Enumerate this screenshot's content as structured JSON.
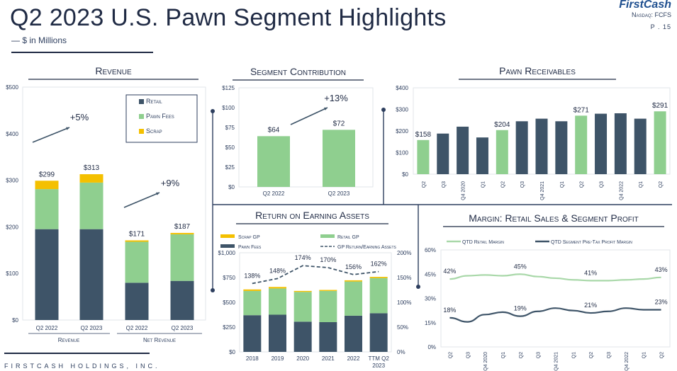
{
  "header": {
    "title": "Q2 2023 U.S. Pawn Segment Highlights",
    "subtitle": "— $ in Millions",
    "brand": "FirstCash",
    "ticker": "Nasdaq: FCFS",
    "page": "P . 15"
  },
  "footer": {
    "company": "FIRSTCASH HOLDINGS, INC."
  },
  "colors": {
    "navy": "#3e5468",
    "green": "#8fcf8f",
    "yellow": "#f4c000",
    "title_navy": "#1f2a44",
    "light_green_line": "#a9d8a9",
    "dark_line": "#3e5468"
  },
  "chart_data": [
    {
      "type": "bar",
      "title": "Revenue",
      "stacked": true,
      "y_ticks": [
        "$500",
        "$400",
        "$300",
        "$200",
        "$100",
        "$0"
      ],
      "ylim": [
        0,
        500
      ],
      "categories": [
        "Q2 2022",
        "Q2 2023",
        "Q2 2022",
        "Q2 2023"
      ],
      "groups": [
        "Revenue",
        "Net Revenue"
      ],
      "series": [
        {
          "name": "Retail",
          "color": "#3e5468",
          "values": [
            195,
            195,
            80,
            84
          ]
        },
        {
          "name": "Pawn Fees",
          "color": "#8fcf8f",
          "values": [
            86,
            100,
            88,
            100
          ]
        },
        {
          "name": "Scrap",
          "color": "#f4c000",
          "values": [
            18,
            18,
            3,
            3
          ]
        }
      ],
      "totals": [
        "$299",
        "$313",
        "$171",
        "$187"
      ],
      "annotations": [
        "+5%",
        "+9%"
      ],
      "legend": "top-right"
    },
    {
      "type": "bar",
      "title": "Segment Contribution",
      "y_ticks": [
        "$125",
        "$100",
        "$75",
        "$50",
        "$25",
        "$0"
      ],
      "ylim": [
        0,
        125
      ],
      "categories": [
        "Q2 2022",
        "Q2 2023"
      ],
      "values": [
        64,
        72
      ],
      "labels": [
        "$64",
        "$72"
      ],
      "annotation": "+13%"
    },
    {
      "type": "bar",
      "title": "Pawn Receivables",
      "y_ticks": [
        "$400",
        "$300",
        "$200",
        "$100",
        "$0"
      ],
      "ylim": [
        0,
        400
      ],
      "categories": [
        "Q2",
        "Q3",
        "Q4 2020",
        "Q1",
        "Q2",
        "Q3",
        "Q4 2021",
        "Q1",
        "Q2",
        "Q3",
        "Q4 2022",
        "Q1",
        "Q2"
      ],
      "values": [
        158,
        188,
        220,
        170,
        204,
        245,
        257,
        245,
        271,
        280,
        282,
        257,
        291
      ],
      "highlight": [
        true,
        false,
        false,
        false,
        true,
        false,
        false,
        false,
        true,
        false,
        false,
        false,
        true
      ],
      "labels": [
        "$158",
        "",
        "",
        "",
        "$204",
        "",
        "",
        "",
        "$271",
        "",
        "",
        "",
        "$291"
      ]
    },
    {
      "type": "bar",
      "title": "Return on Earning Assets",
      "stacked": true,
      "y_ticks": [
        "$1,000",
        "$750",
        "$500",
        "$250",
        "$0"
      ],
      "ylim": [
        0,
        1000
      ],
      "y2_ticks": [
        "200%",
        "150%",
        "100%",
        "50%",
        "0%"
      ],
      "y2lim": [
        0,
        200
      ],
      "categories": [
        "2018",
        "2019",
        "2020",
        "2021",
        "2022",
        "TTM Q2 2023"
      ],
      "series": [
        {
          "name": "Pawn Fees",
          "color": "#3e5468",
          "values": [
            370,
            375,
            305,
            300,
            365,
            390
          ]
        },
        {
          "name": "Retail GP",
          "color": "#8fcf8f",
          "values": [
            245,
            265,
            300,
            315,
            345,
            355
          ]
        },
        {
          "name": "Scrap GP",
          "color": "#f4c000",
          "values": [
            15,
            15,
            10,
            10,
            12,
            12
          ]
        }
      ],
      "line": {
        "name": "GP Return/Earning Assets",
        "values": [
          138,
          148,
          174,
          170,
          156,
          162
        ],
        "labels": [
          "138%",
          "148%",
          "174%",
          "170%",
          "156%",
          "162%"
        ]
      }
    },
    {
      "type": "line",
      "title": "Margin: Retail Sales & Segment Profit",
      "y_ticks": [
        "60%",
        "45%",
        "30%",
        "15%",
        "0%"
      ],
      "ylim": [
        0,
        60
      ],
      "categories": [
        "Q2",
        "Q3",
        "Q4 2020",
        "Q1",
        "Q2",
        "Q3",
        "Q4 2021",
        "Q1",
        "Q2",
        "Q3",
        "Q4 2022",
        "Q1",
        "Q2"
      ],
      "series": [
        {
          "name": "QTD Retail Margin",
          "color": "#a9d8a9",
          "values": [
            42,
            44,
            44.5,
            44,
            45,
            43.5,
            42.5,
            41.5,
            41,
            41,
            41.5,
            42,
            43
          ],
          "labels": [
            "42%",
            "",
            "",
            "",
            "45%",
            "",
            "",
            "",
            "41%",
            "",
            "",
            "",
            "43%"
          ]
        },
        {
          "name": "QTD Segment Pre-Tax Profit Margin",
          "color": "#3e5468",
          "values": [
            18,
            15.5,
            20,
            21.5,
            19,
            22,
            24,
            22.5,
            21,
            22,
            24,
            23,
            23
          ],
          "labels": [
            "18%",
            "",
            "",
            "",
            "19%",
            "",
            "",
            "",
            "21%",
            "",
            "",
            "",
            "23%"
          ]
        }
      ]
    }
  ]
}
